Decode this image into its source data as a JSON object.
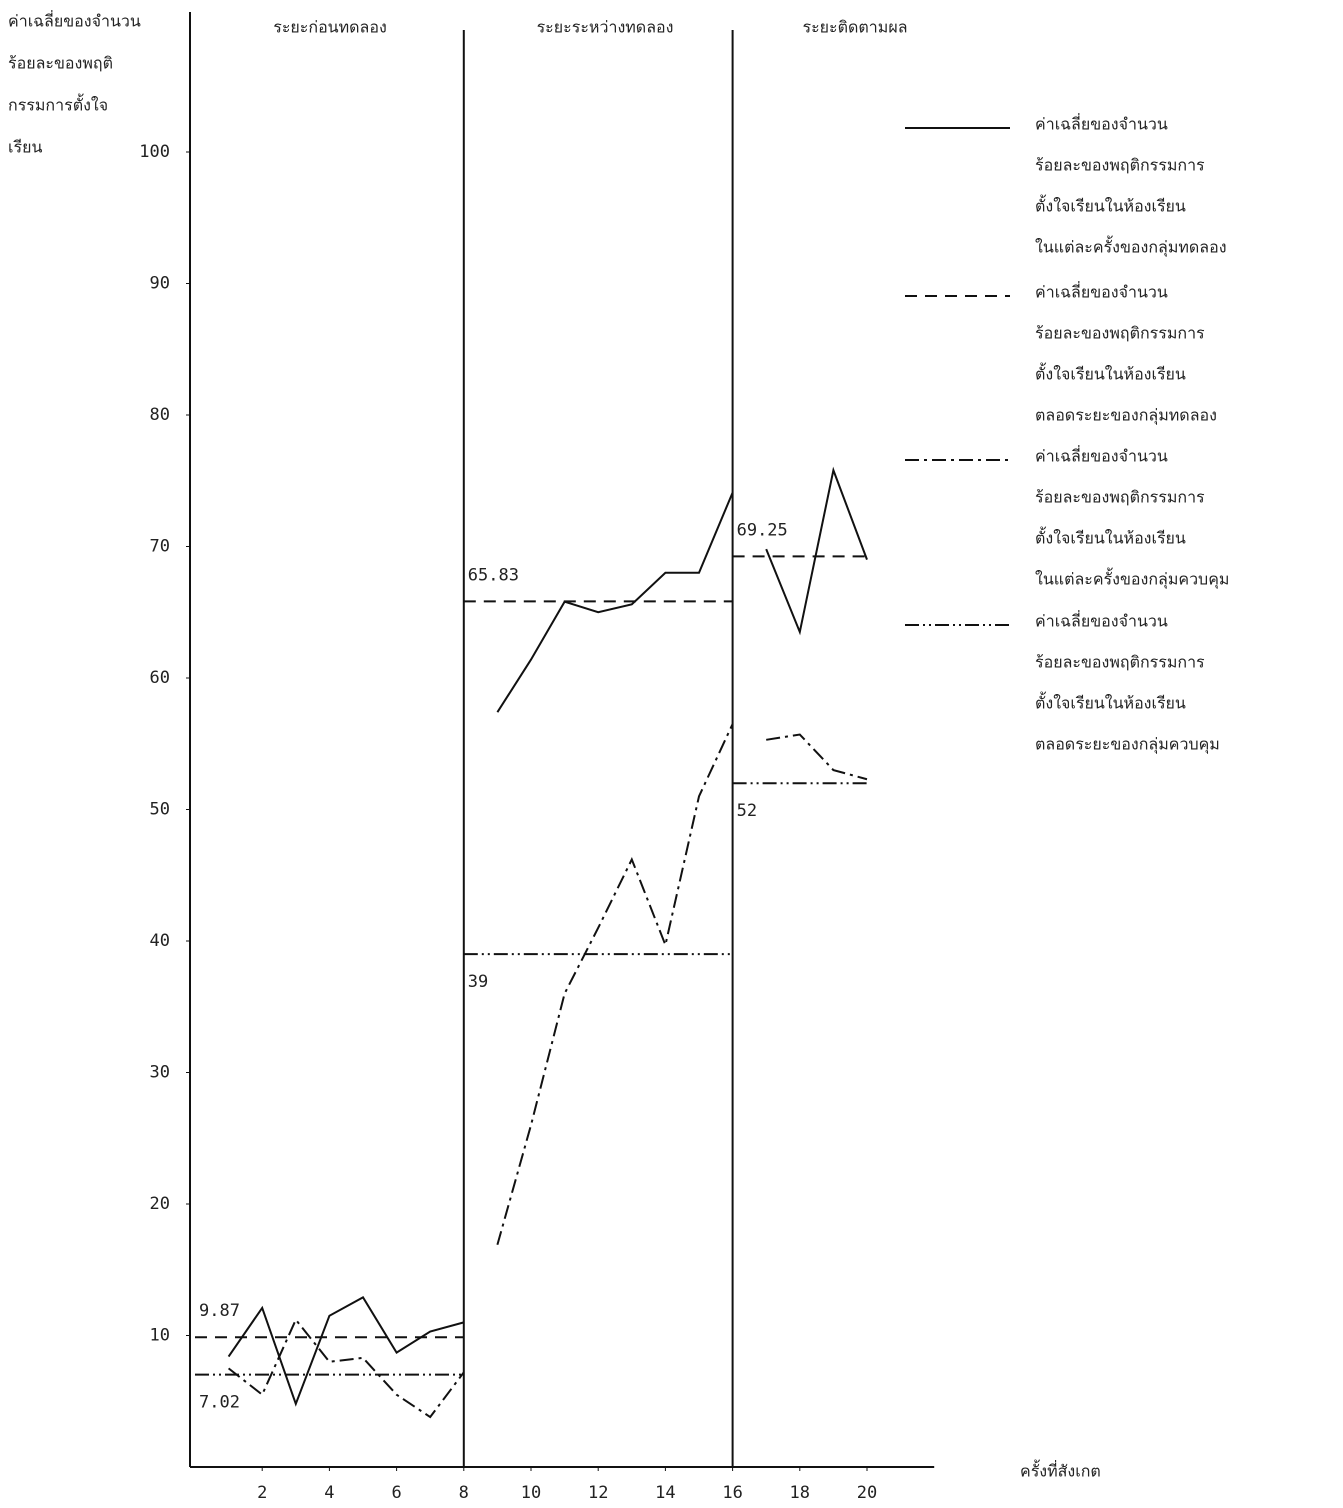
{
  "chart_data": {
    "type": "line",
    "y_label_lines": [
      "ค่าเฉลี่ยของจำนวน",
      "ร้อยละของพฤติ",
      "กรรมการตั้งใจ",
      "เรียน"
    ],
    "x_label": "ครั้งที่สังเกต",
    "phases": [
      "ระยะก่อนทดลอง",
      "ระยะระหว่างทดลอง",
      "ระยะติดตามผล"
    ],
    "phase_boundaries": [
      8,
      16
    ],
    "xlim": [
      0,
      22
    ],
    "ylim": [
      0,
      100
    ],
    "xticks": [
      2,
      4,
      6,
      8,
      10,
      12,
      14,
      16,
      18,
      20
    ],
    "yticks": [
      10,
      20,
      30,
      40,
      50,
      60,
      70,
      80,
      90,
      100
    ],
    "x": [
      1,
      2,
      3,
      4,
      5,
      6,
      7,
      8,
      9,
      10,
      11,
      12,
      13,
      14,
      15,
      16,
      17,
      18,
      19,
      20
    ],
    "series": [
      {
        "name": [
          "ค่าเฉลี่ยของจำนวน",
          "ร้อยละของพฤติกรรมการ",
          "ตั้งใจเรียนในห้องเรียน",
          "ในแต่ละครั้งของกลุ่มทดลอง"
        ],
        "style": "solid",
        "color": "#111",
        "values": [
          8.4,
          12.1,
          4.8,
          11.5,
          12.9,
          8.7,
          10.3,
          11,
          57.4,
          61.4,
          65.8,
          65,
          65.6,
          68,
          68,
          74.1,
          69.8,
          63.5,
          75.8,
          69
        ]
      },
      {
        "name": [
          "ค่าเฉลี่ยของจำนวน",
          "ร้อยละของพฤติกรรมการ",
          "ตั้งใจเรียนในห้องเรียน",
          "ตลอดระยะของกลุ่มทดลอง"
        ],
        "style": "dashed",
        "color": "#111",
        "segments": [
          {
            "x": [
              0,
              8
            ],
            "value": 9.87
          },
          {
            "x": [
              8,
              16
            ],
            "value": 65.83
          },
          {
            "x": [
              16,
              20
            ],
            "value": 69.25
          }
        ]
      },
      {
        "name": [
          "ค่าเฉลี่ยของจำนวน",
          "ร้อยละของพฤติกรรมการ",
          "ตั้งใจเรียนในห้องเรียน",
          "ในแต่ละครั้งของกลุ่มควบคุม"
        ],
        "style": "dashdot",
        "color": "#111",
        "values": [
          7.5,
          5.5,
          11.2,
          8,
          8.3,
          5.5,
          3.8,
          7.2,
          16.9,
          26,
          36,
          41,
          46.2,
          39.7,
          51,
          56.5,
          55.3,
          55.7,
          53,
          52.3
        ]
      },
      {
        "name": [
          "ค่าเฉลี่ยของจำนวน",
          "ร้อยละของพฤติกรรมการ",
          "ตั้งใจเรียนในห้องเรียน",
          "ตลอดระยะของกลุ่มควบคุม"
        ],
        "style": "dashdotdot",
        "color": "#111",
        "segments": [
          {
            "x": [
              0,
              8
            ],
            "value": 7.02
          },
          {
            "x": [
              8,
              16
            ],
            "value": 39
          },
          {
            "x": [
              16,
              20
            ],
            "value": 52
          }
        ]
      }
    ]
  }
}
